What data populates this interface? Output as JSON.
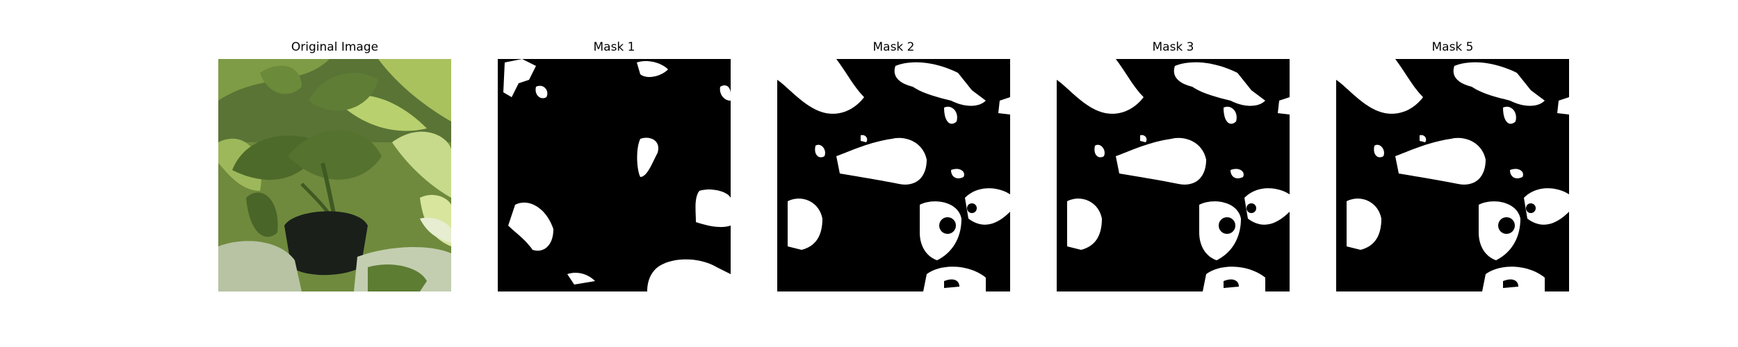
{
  "figure": {
    "panels": [
      {
        "title": "Original Image"
      },
      {
        "title": "Mask 1"
      },
      {
        "title": "Mask 2"
      },
      {
        "title": "Mask 3"
      },
      {
        "title": "Mask 5"
      }
    ]
  },
  "colors": {
    "background": "#ffffff",
    "mask_foreground": "#ffffff",
    "mask_background": "#000000",
    "leaf_dark": "#4f6a2e",
    "leaf_light": "#c8d98a",
    "pot": "#1a1f1a",
    "pot_rim": "#b7c3a3"
  }
}
